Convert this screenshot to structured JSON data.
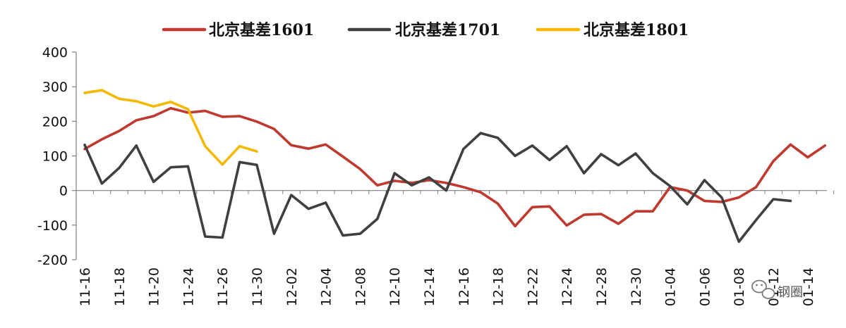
{
  "chart_data": {
    "type": "line",
    "title": "",
    "xlabel": "",
    "ylabel": "",
    "ylim": [
      -200,
      400
    ],
    "y_ticks": [
      "400",
      "300",
      "200",
      "100",
      "0",
      "-100",
      "-200"
    ],
    "grid": false,
    "legend_position": "top",
    "x": [
      "11-16",
      "11-17",
      "11-18",
      "11-19",
      "11-20",
      "11-23",
      "11-24",
      "11-25",
      "11-26",
      "11-27",
      "11-30",
      "12-01",
      "12-02",
      "12-03",
      "12-04",
      "12-07",
      "12-08",
      "12-09",
      "12-10",
      "12-11",
      "12-14",
      "12-15",
      "12-16",
      "12-17",
      "12-18",
      "12-21",
      "12-22",
      "12-23",
      "12-24",
      "12-25",
      "12-28",
      "12-29",
      "12-30",
      "12-31",
      "01-04",
      "01-05",
      "01-06",
      "01-07",
      "01-08",
      "01-11",
      "01-12",
      "01-13",
      "01-14",
      "01-15"
    ],
    "x_tick_labels": [
      "11-16",
      "11-18",
      "11-20",
      "11-24",
      "11-26",
      "11-30",
      "12-02",
      "12-04",
      "12-08",
      "12-10",
      "12-14",
      "12-16",
      "12-18",
      "12-22",
      "12-24",
      "12-28",
      "12-30",
      "01-04",
      "01-06",
      "01-08",
      "01-12",
      "01-14"
    ],
    "series": [
      {
        "name": "北京基差1601",
        "color": "#C0392F",
        "values": [
          120,
          148,
          172,
          203,
          215,
          238,
          225,
          230,
          213,
          215,
          199,
          178,
          131,
          121,
          133,
          98,
          62,
          15,
          28,
          22,
          30,
          22,
          10,
          -5,
          -38,
          -103,
          -48,
          -46,
          -101,
          -70,
          -68,
          -96,
          -60,
          -60,
          10,
          0,
          -30,
          -33,
          -20,
          10,
          85,
          133,
          96,
          130
        ]
      },
      {
        "name": "北京基差1701",
        "color": "#404040",
        "values": [
          132,
          20,
          65,
          130,
          25,
          67,
          70,
          -133,
          -136,
          82,
          74,
          -125,
          -13,
          -53,
          -35,
          -130,
          -125,
          -82,
          50,
          15,
          38,
          0,
          120,
          166,
          152,
          100,
          130,
          88,
          128,
          50,
          105,
          73,
          107,
          50,
          13,
          -40,
          30,
          -20,
          -148,
          -85,
          -25,
          -30,
          null,
          null
        ]
      },
      {
        "name": "北京基差1801",
        "color": "#F5B800",
        "values": [
          282,
          290,
          265,
          258,
          243,
          256,
          235,
          128,
          75,
          128,
          113,
          null,
          null,
          null,
          null,
          null,
          null,
          null,
          null,
          null,
          null,
          null,
          null,
          null,
          null,
          null,
          null,
          null,
          null,
          null,
          null,
          null,
          null,
          null,
          null,
          null,
          null,
          null,
          null,
          null,
          null,
          null,
          null,
          null
        ]
      }
    ]
  },
  "watermark": {
    "text": "钢圈"
  },
  "colors": {
    "axis": "#7F7F7F"
  }
}
